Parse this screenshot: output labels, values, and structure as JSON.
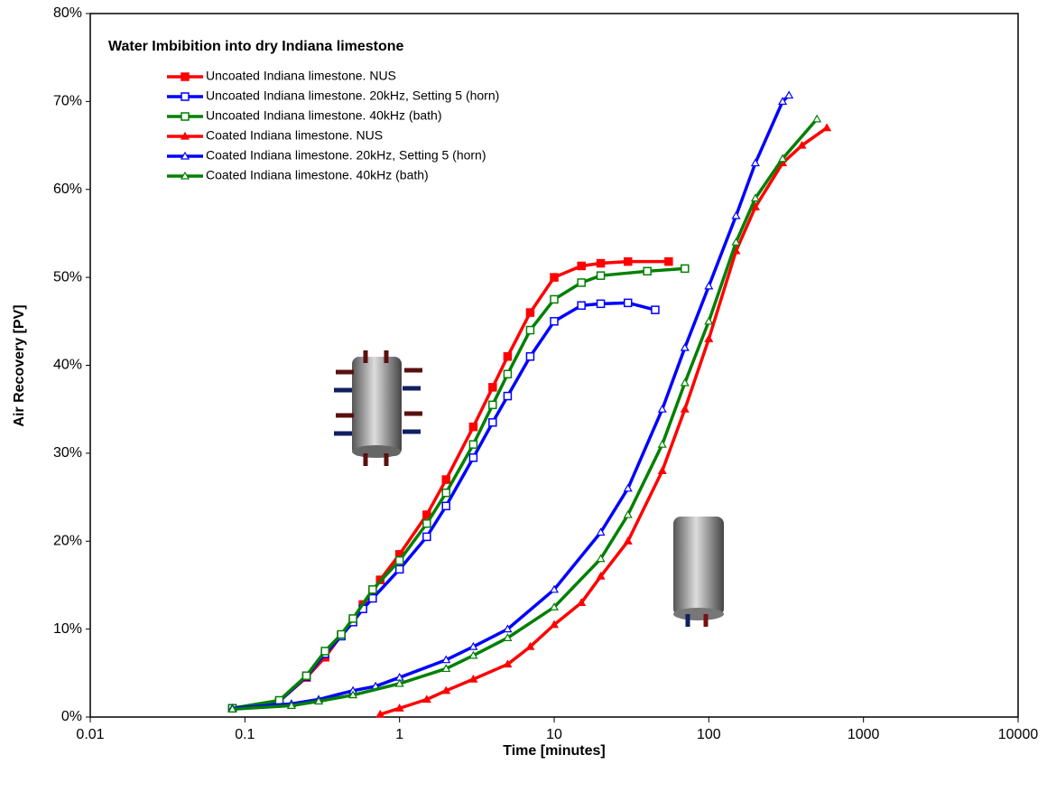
{
  "chart_data": {
    "type": "line",
    "title": "Water Imbibition into dry Indiana limestone",
    "x_label": "Time  [minutes]",
    "y_label": "Air Recovery [PV]",
    "x_scale": "log",
    "xlim": [
      0.01,
      10000
    ],
    "xticks": [
      0.01,
      0.1,
      1,
      10,
      100,
      1000,
      10000
    ],
    "ylim": [
      0,
      80
    ],
    "yticks": [
      {
        "value": 0,
        "label": "0%"
      },
      {
        "value": 10,
        "label": "10%"
      },
      {
        "value": 20,
        "label": "20%"
      },
      {
        "value": 30,
        "label": "30%"
      },
      {
        "value": 40,
        "label": "40%"
      },
      {
        "value": 50,
        "label": "50%"
      },
      {
        "value": 60,
        "label": "60%"
      },
      {
        "value": 70,
        "label": "70%"
      },
      {
        "value": 80,
        "label": "80%"
      }
    ],
    "legend": "upper left",
    "series": [
      {
        "name": "Uncoated Indiana limestone. NUS",
        "color": "#ff0000",
        "marker": "square",
        "marker_filled": true,
        "x": [
          0.083,
          0.167,
          0.25,
          0.33,
          0.42,
          0.5,
          0.58,
          0.67,
          0.75,
          1,
          1.5,
          2,
          3,
          4,
          5,
          7,
          10,
          15,
          20,
          30,
          55
        ],
        "values": [
          1,
          1.8,
          4.5,
          6.8,
          9.3,
          11,
          12.8,
          14.2,
          15.6,
          18.5,
          23,
          27,
          33,
          37.5,
          41,
          46,
          50,
          51.3,
          51.6,
          51.8,
          51.8
        ]
      },
      {
        "name": "Uncoated Indiana limestone. 20kHz, Setting 5 (horn)",
        "color": "#0000ff",
        "marker": "square",
        "marker_filled": false,
        "x": [
          0.083,
          0.167,
          0.25,
          0.33,
          0.42,
          0.5,
          0.58,
          0.67,
          1,
          1.5,
          2,
          3,
          4,
          5,
          7,
          10,
          15,
          20,
          30,
          45
        ],
        "values": [
          1,
          1.8,
          4.6,
          7.2,
          9.2,
          10.8,
          12.3,
          13.5,
          16.8,
          20.5,
          24,
          29.5,
          33.5,
          36.5,
          41,
          45,
          46.8,
          47,
          47.1,
          46.3
        ]
      },
      {
        "name": "Uncoated Indiana limestone. 40kHz (bath)",
        "color": "#008000",
        "marker": "square",
        "marker_filled": false,
        "x": [
          0.083,
          0.167,
          0.25,
          0.33,
          0.42,
          0.5,
          0.67,
          1,
          1.5,
          2,
          3,
          4,
          5,
          7,
          10,
          15,
          20,
          40,
          70
        ],
        "values": [
          1,
          1.9,
          4.7,
          7.5,
          9.4,
          11.2,
          14.5,
          17.8,
          22,
          25.5,
          31,
          35.5,
          39,
          44,
          47.5,
          49.4,
          50.2,
          50.7,
          51
        ]
      },
      {
        "name": "Coated Indiana limestone. NUS",
        "color": "#ff0000",
        "marker": "triangle",
        "marker_filled": true,
        "x": [
          0.75,
          1,
          1.5,
          2,
          3,
          5,
          7,
          10,
          15,
          20,
          30,
          50,
          70,
          100,
          150,
          200,
          300,
          400,
          580
        ],
        "values": [
          0.3,
          1,
          2,
          3,
          4.3,
          6,
          8,
          10.5,
          13,
          16,
          20,
          28,
          35,
          43,
          53,
          58,
          63,
          65,
          67
        ]
      },
      {
        "name": "Coated Indiana limestone. 20kHz, Setting 5 (horn)",
        "color": "#0000ff",
        "marker": "triangle",
        "marker_filled": false,
        "x": [
          0.083,
          0.2,
          0.3,
          0.5,
          0.7,
          1,
          2,
          3,
          5,
          10,
          20,
          30,
          50,
          70,
          100,
          150,
          200,
          300,
          330
        ],
        "values": [
          1,
          1.5,
          2,
          3,
          3.5,
          4.5,
          6.5,
          8,
          10,
          14.5,
          21,
          26,
          35,
          42,
          49,
          57,
          63,
          70,
          70.7
        ]
      },
      {
        "name": "Coated Indiana limestone. 40kHz (bath)",
        "color": "#008000",
        "marker": "triangle",
        "marker_filled": false,
        "x": [
          0.083,
          0.2,
          0.3,
          0.5,
          1,
          2,
          3,
          5,
          10,
          20,
          30,
          50,
          70,
          100,
          150,
          200,
          300,
          500
        ],
        "values": [
          0.9,
          1.3,
          1.8,
          2.5,
          3.8,
          5.5,
          7,
          9,
          12.5,
          18,
          23,
          31,
          38,
          45,
          54,
          59,
          63.5,
          68
        ]
      }
    ]
  }
}
